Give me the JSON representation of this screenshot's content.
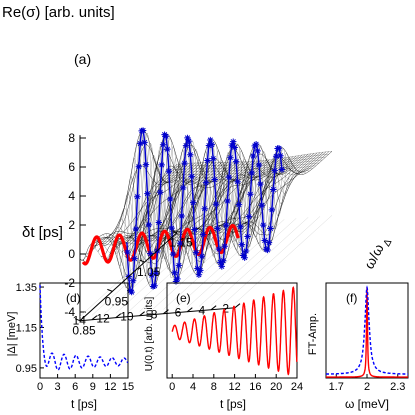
{
  "chart_data": [
    {
      "panel": "main-3d",
      "type": "surface",
      "zlabel": "Re(σ) [arb. units]",
      "panel_label": "(a)",
      "z_ticks": [
        "8",
        "6",
        "4",
        "2",
        "0",
        "-2",
        "-4"
      ],
      "z_range": [
        -4,
        8
      ],
      "depth_label": "δt [ps]",
      "depth_ticks": [
        "2",
        "4",
        "6",
        "8",
        "10",
        "12",
        "14"
      ],
      "depth_range": [
        2,
        15
      ],
      "freq_label": "ω/ω",
      "freq_label_sub": "Δ",
      "freq_ticks": [
        "0.85",
        "0.95",
        "1.05",
        "1.15"
      ],
      "freq_range": [
        0.85,
        1.15
      ],
      "curves": [
        {
          "name": "",
          "color": "#ff0000",
          "description": "oscillating ridge along δt at ω/ωΔ≈0.85"
        },
        {
          "name": "",
          "color": "#0000cc",
          "description": "oscillating ridge along δt at ω/ωΔ≈1.0 (markers)"
        }
      ]
    },
    {
      "panel": "d",
      "type": "line",
      "panel_label": "(d)",
      "ylabel": "|Δ| [meV]",
      "xlabel": "t [ps]",
      "y_ticks": [
        "1.35",
        "1.15",
        "0.95"
      ],
      "x_ticks": [
        "0",
        "3",
        "6",
        "9",
        "12",
        "15"
      ],
      "xlim": [
        0,
        15
      ],
      "ylim": [
        0.9,
        1.37
      ],
      "series": [
        {
          "name": "",
          "color": "#0000ff",
          "style": "dashed",
          "x0": 0,
          "x1": 15,
          "start": 1.35,
          "mean": 0.98,
          "amp": 0.05,
          "decay": 0.07,
          "period": 2.05,
          "initial_drop": 0.45
        }
      ]
    },
    {
      "panel": "e",
      "type": "line",
      "panel_label": "(e)",
      "ylabel": "U(0,t) [arb. units]",
      "xlabel": "t [ps]",
      "x_ticks": [
        "0",
        "4",
        "8",
        "12",
        "16",
        "20",
        "24"
      ],
      "xlim": [
        -1,
        24
      ],
      "ylim": [
        -1,
        1.05
      ],
      "series": [
        {
          "name": "",
          "color": "#ff0000",
          "style": "solid",
          "x0": 0,
          "x1": 24,
          "amp_start": 0.12,
          "amp_end": 0.98,
          "period": 1.9
        }
      ]
    },
    {
      "panel": "f",
      "type": "line",
      "panel_label": "(f)",
      "ylabel": "FT-Amp.",
      "xlabel": "ω [meV]",
      "x_ticks": [
        "1.7",
        "2",
        "2.3"
      ],
      "xlim": [
        1.6,
        2.4
      ],
      "ylim": [
        0,
        1.05
      ],
      "series": [
        {
          "name": "",
          "color": "#ff0000",
          "style": "solid",
          "center": 2.0,
          "width": 0.006,
          "base": 0.01
        },
        {
          "name": "",
          "color": "#0000ff",
          "style": "dashed",
          "center": 2.0,
          "width": 0.025,
          "base": 0.04
        }
      ]
    }
  ]
}
